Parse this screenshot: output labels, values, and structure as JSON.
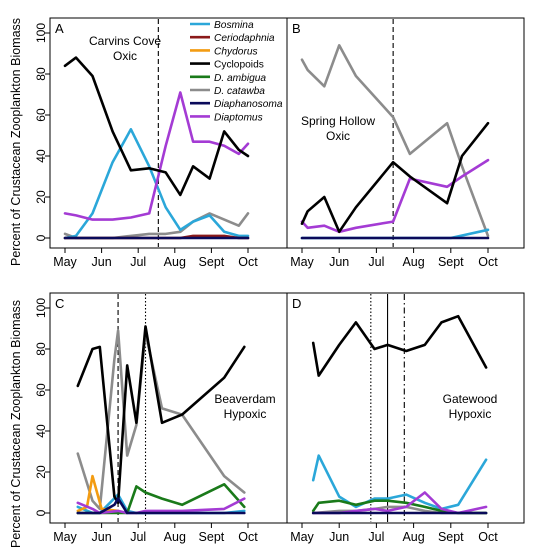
{
  "figure": {
    "ylabel": "Percent of Crustacean Zooplankton Biomass"
  },
  "chart_data": [
    {
      "type": "line",
      "panel_letter": "A",
      "annotation": [
        "Carvins Cove",
        "Oxic"
      ],
      "xlabels": [
        "May",
        "Jun",
        "Jul",
        "Aug",
        "Sept",
        "Oct"
      ],
      "yticks": [
        0,
        20,
        40,
        60,
        80,
        100
      ],
      "ylim": [
        0,
        100
      ],
      "xlim": [
        0,
        5
      ],
      "legend": {
        "placement": "top-right",
        "entries": [
          "Bosmina",
          "Ceriodaphnia",
          "Chydorus",
          "Cyclopoids",
          "D. ambigua",
          "D. catawba",
          "Diaphanosoma",
          "Diaptomus"
        ],
        "italic": [
          true,
          true,
          true,
          false,
          true,
          true,
          true,
          true
        ]
      },
      "vlines": [
        {
          "x": 2.55,
          "style": "dashed"
        }
      ],
      "series": [
        {
          "name": "Cyclopoids",
          "x": [
            0.0,
            0.3,
            0.75,
            1.3,
            1.8,
            2.3,
            2.75,
            3.15,
            3.5,
            3.95,
            4.35,
            4.75,
            5.0
          ],
          "y": [
            84,
            88,
            79,
            52,
            33,
            34,
            32,
            21,
            35,
            29,
            52,
            43,
            40
          ]
        },
        {
          "name": "Bosmina",
          "x": [
            0.0,
            0.3,
            0.75,
            1.3,
            1.8,
            2.3,
            2.75,
            3.15,
            3.5,
            3.95,
            4.35,
            4.75,
            5.0
          ],
          "y": [
            0,
            1,
            12,
            37,
            53,
            35,
            15,
            4,
            8,
            11,
            3,
            1,
            1
          ]
        },
        {
          "name": "D. catawba",
          "x": [
            0.0,
            0.3,
            0.75,
            1.3,
            1.8,
            2.3,
            2.75,
            3.15,
            3.5,
            3.95,
            4.35,
            4.75,
            5.0
          ],
          "y": [
            2,
            0,
            0,
            0,
            1,
            2,
            2,
            3,
            8,
            12,
            9,
            6,
            12
          ]
        },
        {
          "name": "Diaptomus",
          "x": [
            0.0,
            0.3,
            0.75,
            1.3,
            1.8,
            2.3,
            2.75,
            3.15,
            3.5,
            3.95,
            4.35,
            4.75,
            5.0
          ],
          "y": [
            12,
            11,
            9,
            9,
            10,
            12,
            45,
            71,
            47,
            47,
            45,
            41,
            46
          ]
        },
        {
          "name": "Ceriodaphnia",
          "x": [
            0.0,
            0.3,
            0.75,
            1.3,
            1.8,
            2.3,
            2.75,
            3.15,
            3.5,
            3.95,
            4.35,
            4.75,
            5.0
          ],
          "y": [
            0,
            0,
            0,
            0,
            0,
            0,
            0,
            0,
            1,
            1,
            1,
            0,
            0
          ]
        },
        {
          "name": "Diaphanosoma",
          "x": [
            0.0,
            0.3,
            0.75,
            1.3,
            1.8,
            2.3,
            2.75,
            3.15,
            3.5,
            3.95,
            4.35,
            4.75,
            5.0
          ],
          "y": [
            0,
            0,
            0,
            0,
            0,
            0,
            0,
            0,
            0,
            0,
            0,
            0,
            0
          ]
        }
      ]
    },
    {
      "type": "line",
      "panel_letter": "B",
      "annotation": [
        "Spring Hollow",
        "Oxic"
      ],
      "xlabels": [
        "May",
        "Jun",
        "Jul",
        "Aug",
        "Sept",
        "Oct"
      ],
      "yticks": [
        0,
        20,
        40,
        60,
        80,
        100
      ],
      "ylim": [
        0,
        100
      ],
      "xlim": [
        0,
        5
      ],
      "vlines": [
        {
          "x": 2.45,
          "style": "dashed"
        }
      ],
      "series": [
        {
          "name": "D. catawba",
          "x": [
            0.0,
            0.15,
            0.6,
            1.0,
            1.45,
            2.45,
            2.9,
            3.9,
            4.3,
            5.0
          ],
          "y": [
            87,
            82,
            74,
            94,
            79,
            59,
            41,
            56,
            35,
            1
          ]
        },
        {
          "name": "Cyclopoids",
          "x": [
            0.0,
            0.15,
            0.6,
            1.0,
            1.45,
            2.45,
            2.9,
            3.9,
            4.3,
            5.0
          ],
          "y": [
            7,
            13,
            20,
            3,
            15,
            37,
            30,
            17,
            40,
            56
          ]
        },
        {
          "name": "Diaptomus",
          "x": [
            0.0,
            0.15,
            0.6,
            1.0,
            1.45,
            2.45,
            2.9,
            3.9,
            4.3,
            5.0
          ],
          "y": [
            8,
            5,
            6,
            3,
            5,
            8,
            29,
            25,
            30,
            38
          ]
        },
        {
          "name": "Bosmina",
          "x": [
            0.0,
            1.0,
            2.0,
            3.0,
            4.0,
            5.0
          ],
          "y": [
            0,
            0,
            0,
            0,
            0,
            4
          ]
        },
        {
          "name": "Diaphanosoma",
          "x": [
            0.0,
            1.0,
            2.0,
            3.0,
            4.0,
            5.0
          ],
          "y": [
            0,
            0,
            0,
            0,
            0,
            0
          ]
        }
      ]
    },
    {
      "type": "line",
      "panel_letter": "C",
      "annotation": [
        "Beaverdam",
        "Hypoxic"
      ],
      "xlabels": [
        "May",
        "Jun",
        "Jul",
        "Aug",
        "Sept",
        "Oct"
      ],
      "yticks": [
        0,
        20,
        40,
        60,
        80,
        100
      ],
      "ylim": [
        0,
        100
      ],
      "xlim": [
        0,
        5
      ],
      "vlines": [
        {
          "x": 1.45,
          "style": "dashed"
        },
        {
          "x": 2.2,
          "style": "dotted"
        }
      ],
      "series": [
        {
          "name": "Cyclopoids",
          "x": [
            0.35,
            0.75,
            0.95,
            1.35,
            1.45,
            1.7,
            1.95,
            2.2,
            2.65,
            3.2,
            4.35,
            4.9
          ],
          "y": [
            62,
            80,
            81,
            8,
            5,
            72,
            44,
            91,
            44,
            48,
            66,
            81
          ]
        },
        {
          "name": "D. catawba",
          "x": [
            0.35,
            0.75,
            0.95,
            1.35,
            1.45,
            1.7,
            1.95,
            2.2,
            2.65,
            3.2,
            4.35,
            4.9
          ],
          "y": [
            29,
            6,
            2,
            75,
            89,
            28,
            43,
            88,
            51,
            48,
            18,
            10
          ]
        },
        {
          "name": "Chydorus",
          "x": [
            0.35,
            0.6,
            0.75,
            1.0,
            1.45
          ],
          "y": [
            1,
            3,
            18,
            2,
            1
          ]
        },
        {
          "name": "D. ambigua",
          "x": [
            0.35,
            0.75,
            0.95,
            1.45,
            1.7,
            1.95,
            2.2,
            2.65,
            3.2,
            4.35,
            4.9
          ],
          "y": [
            0,
            0,
            0,
            0,
            0,
            13,
            10,
            7,
            4,
            14,
            3
          ]
        },
        {
          "name": "Diaptomus",
          "x": [
            0.35,
            0.75,
            0.95,
            1.45,
            1.7,
            1.95,
            2.2,
            2.65,
            3.2,
            4.35,
            4.9
          ],
          "y": [
            5,
            2,
            0,
            1,
            0,
            0,
            1,
            1,
            1,
            2,
            7
          ]
        },
        {
          "name": "Bosmina",
          "x": [
            0.35,
            0.75,
            0.95,
            1.45,
            1.7,
            1.95,
            2.2,
            2.65,
            3.2,
            4.35,
            4.9
          ],
          "y": [
            3,
            0,
            0,
            9,
            1,
            0,
            0,
            0,
            0,
            0,
            1
          ]
        },
        {
          "name": "Diaphanosoma",
          "x": [
            0.35,
            0.75,
            0.95,
            1.35,
            1.45,
            1.7,
            2.2,
            3.2,
            4.35,
            4.9
          ],
          "y": [
            0,
            0,
            0,
            4,
            7,
            0,
            0,
            0,
            0,
            0
          ]
        }
      ]
    },
    {
      "type": "line",
      "panel_letter": "D",
      "annotation": [
        "Gatewood",
        "Hypoxic"
      ],
      "xlabels": [
        "May",
        "Jun",
        "Jul",
        "Aug",
        "Sept",
        "Oct"
      ],
      "yticks": [
        0,
        20,
        40,
        60,
        80,
        100
      ],
      "ylim": [
        0,
        100
      ],
      "xlim": [
        0,
        5
      ],
      "vlines": [
        {
          "x": 1.85,
          "style": "dotted"
        },
        {
          "x": 2.3,
          "style": "solid"
        },
        {
          "x": 2.75,
          "style": "dashdot"
        }
      ],
      "series": [
        {
          "name": "Cyclopoids",
          "x": [
            0.3,
            0.45,
            1.0,
            1.45,
            1.95,
            2.3,
            2.8,
            3.3,
            3.75,
            4.2,
            4.95
          ],
          "y": [
            83,
            67,
            82,
            93,
            80,
            82,
            79,
            82,
            93,
            96,
            71
          ]
        },
        {
          "name": "Bosmina",
          "x": [
            0.3,
            0.45,
            1.0,
            1.45,
            1.95,
            2.3,
            2.8,
            3.3,
            3.75,
            4.2,
            4.95
          ],
          "y": [
            16,
            28,
            8,
            3,
            7,
            7,
            9,
            5,
            2,
            4,
            26
          ]
        },
        {
          "name": "D. ambigua",
          "x": [
            0.3,
            0.45,
            1.0,
            1.45,
            1.95,
            2.3,
            2.8,
            3.3,
            3.75,
            4.2,
            4.95
          ],
          "y": [
            1,
            5,
            6,
            4,
            6,
            6,
            5,
            3,
            1,
            0,
            0
          ]
        },
        {
          "name": "D. catawba",
          "x": [
            0.3,
            1.0,
            1.45,
            1.95,
            2.3,
            2.8,
            3.3,
            3.75,
            4.2,
            4.95
          ],
          "y": [
            0,
            1,
            1,
            2,
            3,
            3,
            1,
            0,
            0,
            0
          ]
        },
        {
          "name": "Diaptomus",
          "x": [
            0.3,
            1.0,
            1.45,
            1.95,
            2.3,
            2.8,
            3.3,
            3.75,
            4.2,
            4.95
          ],
          "y": [
            0,
            0,
            1,
            2,
            1,
            3,
            10,
            2,
            0,
            3
          ]
        },
        {
          "name": "Diaphanosoma",
          "x": [
            0.3,
            1.0,
            2.0,
            3.0,
            4.0,
            4.95
          ],
          "y": [
            0,
            0,
            0,
            0,
            0,
            0
          ]
        }
      ]
    }
  ],
  "colors": {
    "Bosmina": "#2ba7d9",
    "Ceriodaphnia": "#8b1a1a",
    "Chydorus": "#f39c12",
    "Cyclopoids": "#000000",
    "D. ambigua": "#1a7a1a",
    "D. catawba": "#8c8c8c",
    "Diaphanosoma": "#0a0a5a",
    "Diaptomus": "#a43bd4"
  }
}
